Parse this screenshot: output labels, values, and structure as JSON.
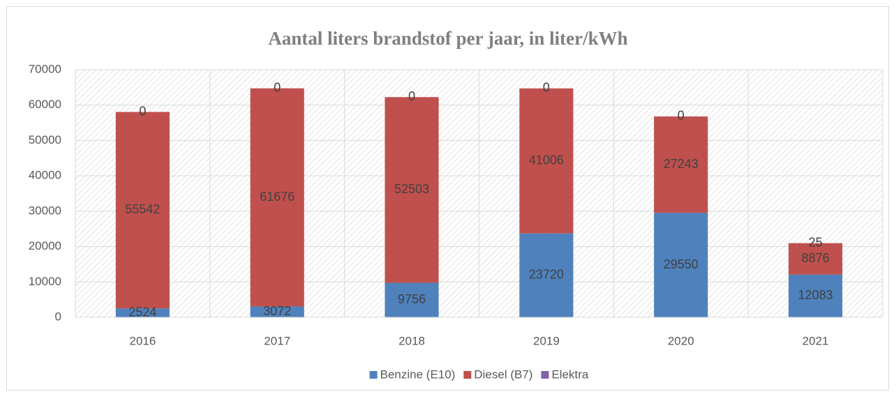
{
  "chart_data": {
    "type": "bar",
    "stacked": true,
    "title": "Aantal liters brandstof per jaar, in liter/kWh",
    "categories": [
      "2016",
      "2017",
      "2018",
      "2019",
      "2020",
      "2021"
    ],
    "series": [
      {
        "name": "Benzine (E10)",
        "color": "#4f81bd",
        "values": [
          2524,
          3072,
          9756,
          23720,
          29550,
          12083
        ]
      },
      {
        "name": "Diesel (B7)",
        "color": "#c0504d",
        "values": [
          55542,
          61676,
          52503,
          41006,
          27243,
          8876
        ]
      },
      {
        "name": "Elektra",
        "color": "#8064a2",
        "values": [
          0,
          0,
          0,
          0,
          0,
          25
        ]
      }
    ],
    "ylim": [
      0,
      70000
    ],
    "yticks": [
      0,
      10000,
      20000,
      30000,
      40000,
      50000,
      60000,
      70000
    ],
    "grid": true,
    "legend": "bottom"
  }
}
